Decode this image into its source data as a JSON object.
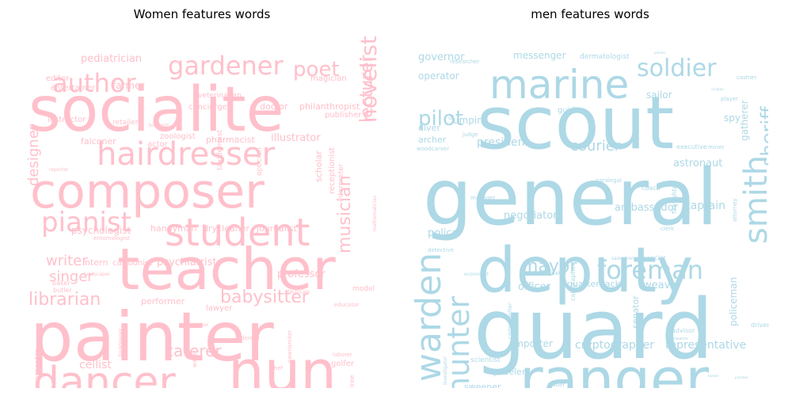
{
  "chart_data": [
    {
      "type": "wordcloud",
      "title": "Women features words",
      "color": "#ffc0cb",
      "words": [
        {
          "text": "painter",
          "weight": 100
        },
        {
          "text": "socialite",
          "weight": 92
        },
        {
          "text": "teacher",
          "weight": 90
        },
        {
          "text": "composer",
          "weight": 80
        },
        {
          "text": "nun",
          "weight": 78
        },
        {
          "text": "dancer",
          "weight": 62
        },
        {
          "text": "student",
          "weight": 60
        },
        {
          "text": "hairdresser",
          "weight": 52
        },
        {
          "text": "gardener",
          "weight": 40
        },
        {
          "text": "author",
          "weight": 36
        },
        {
          "text": "novelist",
          "weight": 34
        },
        {
          "text": "pianist",
          "weight": 34
        },
        {
          "text": "lecturer",
          "weight": 28
        },
        {
          "text": "poet",
          "weight": 28
        },
        {
          "text": "librarian",
          "weight": 22
        },
        {
          "text": "babysitter",
          "weight": 22
        },
        {
          "text": "caterer",
          "weight": 22
        },
        {
          "text": "musician",
          "weight": 22
        },
        {
          "text": "designer",
          "weight": 20
        },
        {
          "text": "singer",
          "weight": 19
        },
        {
          "text": "violinist",
          "weight": 18
        },
        {
          "text": "writer",
          "weight": 17
        },
        {
          "text": "cellist",
          "weight": 15
        },
        {
          "text": "restaurateur",
          "weight": 14
        },
        {
          "text": "artist",
          "weight": 14
        },
        {
          "text": "professor",
          "weight": 13
        },
        {
          "text": "psychiatrist",
          "weight": 12
        },
        {
          "text": "psychologist",
          "weight": 11
        },
        {
          "text": "illustrator",
          "weight": 11
        },
        {
          "text": "pediatrician",
          "weight": 11
        },
        {
          "text": "scholar",
          "weight": 10
        },
        {
          "text": "intern",
          "weight": 9
        },
        {
          "text": "cartoonist",
          "weight": 9
        },
        {
          "text": "pharmacist",
          "weight": 9
        },
        {
          "text": "handyman",
          "weight": 9
        },
        {
          "text": "drycleaner",
          "weight": 9
        },
        {
          "text": "journalist",
          "weight": 9
        },
        {
          "text": "philanthropist",
          "weight": 9
        },
        {
          "text": "doctor",
          "weight": 9
        },
        {
          "text": "farmer",
          "weight": 9
        },
        {
          "text": "receptionist",
          "weight": 8
        },
        {
          "text": "performer",
          "weight": 8
        },
        {
          "text": "optician",
          "weight": 8
        },
        {
          "text": "publisher",
          "weight": 8
        },
        {
          "text": "veterinarian",
          "weight": 8
        },
        {
          "text": "concierge",
          "weight": 8
        },
        {
          "text": "instructor",
          "weight": 8
        },
        {
          "text": "entertainer",
          "weight": 7
        },
        {
          "text": "editor",
          "weight": 7
        },
        {
          "text": "magician",
          "weight": 7
        },
        {
          "text": "retailer",
          "weight": 7
        },
        {
          "text": "falconer",
          "weight": 7
        },
        {
          "text": "zoologist",
          "weight": 7
        },
        {
          "text": "actor",
          "weight": 7
        },
        {
          "text": "lawyer",
          "weight": 7
        },
        {
          "text": "golfer",
          "weight": 6
        },
        {
          "text": "taxidermist",
          "weight": 6
        },
        {
          "text": "interpreter",
          "weight": 6
        },
        {
          "text": "model",
          "weight": 6
        },
        {
          "text": "carpenter",
          "weight": 6
        },
        {
          "text": "tailor",
          "weight": 6
        },
        {
          "text": "retiree",
          "weight": 5
        },
        {
          "text": "butler",
          "weight": 5
        },
        {
          "text": "baker",
          "weight": 5
        },
        {
          "text": "entomologist",
          "weight": 5
        },
        {
          "text": "dentist",
          "weight": 5
        },
        {
          "text": "chef",
          "weight": 5
        },
        {
          "text": "laborer",
          "weight": 5
        },
        {
          "text": "educator",
          "weight": 5
        },
        {
          "text": "waiter",
          "weight": 5
        },
        {
          "text": "pawnbroker",
          "weight": 5
        },
        {
          "text": "animator",
          "weight": 4
        },
        {
          "text": "biologist",
          "weight": 4
        },
        {
          "text": "reporter",
          "weight": 4
        },
        {
          "text": "mathematician",
          "weight": 4
        },
        {
          "text": "bookkeeper",
          "weight": 4
        },
        {
          "text": "landscaper",
          "weight": 4
        },
        {
          "text": "electrician",
          "weight": 4
        }
      ]
    },
    {
      "type": "wordcloud",
      "title": "men features words",
      "color": "#add8e6",
      "words": [
        {
          "text": "general",
          "weight": 100
        },
        {
          "text": "guard",
          "weight": 98
        },
        {
          "text": "scout",
          "weight": 90
        },
        {
          "text": "deputy",
          "weight": 88
        },
        {
          "text": "ranger",
          "weight": 70
        },
        {
          "text": "marine",
          "weight": 50
        },
        {
          "text": "warden",
          "weight": 45
        },
        {
          "text": "smith",
          "weight": 42
        },
        {
          "text": "hunter",
          "weight": 38
        },
        {
          "text": "foreman",
          "weight": 32
        },
        {
          "text": "soldier",
          "weight": 30
        },
        {
          "text": "sheriff",
          "weight": 25
        },
        {
          "text": "pilot",
          "weight": 24
        },
        {
          "text": "mayor",
          "weight": 22
        },
        {
          "text": "trainer",
          "weight": 18
        },
        {
          "text": "courier",
          "weight": 17
        },
        {
          "text": "representative",
          "weight": 13
        },
        {
          "text": "president",
          "weight": 13
        },
        {
          "text": "cryptographer",
          "weight": 13
        },
        {
          "text": "captain",
          "weight": 13
        },
        {
          "text": "ambassador",
          "weight": 12
        },
        {
          "text": "negotiator",
          "weight": 12
        },
        {
          "text": "astronaut",
          "weight": 12
        },
        {
          "text": "governor",
          "weight": 12
        },
        {
          "text": "collector",
          "weight": 12
        },
        {
          "text": "police",
          "weight": 11
        },
        {
          "text": "weaver",
          "weight": 11
        },
        {
          "text": "officer",
          "weight": 11
        },
        {
          "text": "policeman",
          "weight": 11
        },
        {
          "text": "operator",
          "weight": 11
        },
        {
          "text": "umpire",
          "weight": 11
        },
        {
          "text": "gatherer",
          "weight": 10
        },
        {
          "text": "sailor",
          "weight": 10
        },
        {
          "text": "messenger",
          "weight": 10
        },
        {
          "text": "archer",
          "weight": 10
        },
        {
          "text": "agent",
          "weight": 10
        },
        {
          "text": "importer",
          "weight": 10
        },
        {
          "text": "quarterback",
          "weight": 10
        },
        {
          "text": "senator",
          "weight": 10
        },
        {
          "text": "diver",
          "weight": 10
        },
        {
          "text": "spy",
          "weight": 10
        },
        {
          "text": "yodeler",
          "weight": 9
        },
        {
          "text": "sweeper",
          "weight": 9
        },
        {
          "text": "guide",
          "weight": 8
        },
        {
          "text": "scientist",
          "weight": 7
        },
        {
          "text": "dermatologist",
          "weight": 7
        },
        {
          "text": "firefighter",
          "weight": 7
        },
        {
          "text": "calligrapher",
          "weight": 7
        },
        {
          "text": "financier",
          "weight": 7
        },
        {
          "text": "coach",
          "weight": 7
        },
        {
          "text": "driver",
          "weight": 7
        },
        {
          "text": "advisor",
          "weight": 7
        },
        {
          "text": "executive",
          "weight": 7
        },
        {
          "text": "attorney",
          "weight": 6
        },
        {
          "text": "paralegal",
          "weight": 6
        },
        {
          "text": "clerk",
          "weight": 6
        },
        {
          "text": "cashier",
          "weight": 6
        },
        {
          "text": "player",
          "weight": 6
        },
        {
          "text": "miner",
          "weight": 6
        },
        {
          "text": "detective",
          "weight": 6
        },
        {
          "text": "cartographer",
          "weight": 6
        },
        {
          "text": "baker",
          "weight": 6
        },
        {
          "text": "judge",
          "weight": 6
        },
        {
          "text": "researcher",
          "weight": 6
        },
        {
          "text": "woodcarver",
          "weight": 6
        },
        {
          "text": "investigator",
          "weight": 5
        },
        {
          "text": "trader",
          "weight": 5
        },
        {
          "text": "saxophonist",
          "weight": 5
        },
        {
          "text": "economist",
          "weight": 5
        },
        {
          "text": "manager",
          "weight": 5
        },
        {
          "text": "cleaner",
          "weight": 4
        },
        {
          "text": "dj",
          "weight": 5
        },
        {
          "text": "banker",
          "weight": 3
        },
        {
          "text": "plumber",
          "weight": 3
        },
        {
          "text": "painter",
          "weight": 3
        },
        {
          "text": "sculptor",
          "weight": 3
        }
      ]
    }
  ]
}
